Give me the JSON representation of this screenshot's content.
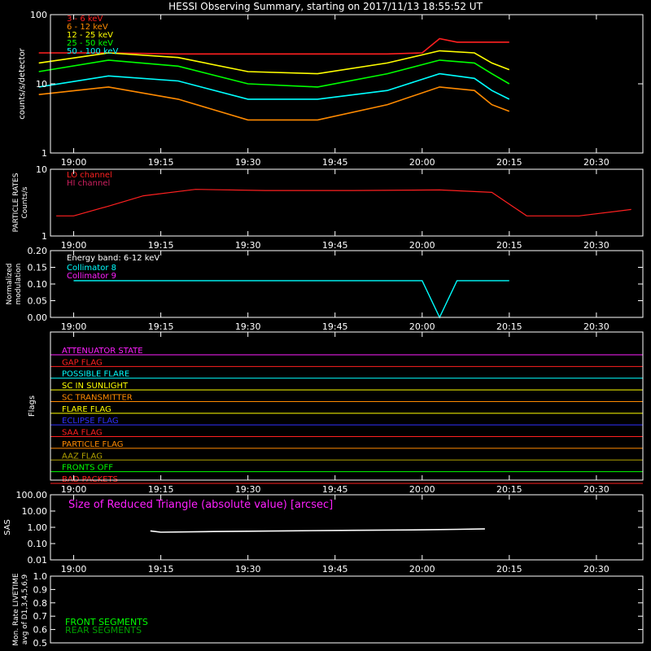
{
  "page_title": "HESSI Observing Summary, starting on 2017/11/13 18:55:52 UT",
  "chart_data": [
    {
      "type": "line",
      "panel": "count-rates",
      "ylabel": "counts/s/detector",
      "yscale": "log",
      "ylim": [
        1,
        100
      ],
      "y_ticks": [
        "1",
        "10",
        "100"
      ],
      "x_ticks": [
        "19:00",
        "19:15",
        "19:30",
        "19:45",
        "20:00",
        "20:15",
        "20:30"
      ],
      "series": [
        {
          "name": "3 - 6 keV",
          "color": "#ff2020",
          "x": [
            18.9,
            19.1,
            19.3,
            19.5,
            19.7,
            19.9,
            20.0,
            20.05,
            20.1,
            20.2,
            20.25
          ],
          "y": [
            28,
            28,
            27,
            27,
            27,
            27,
            28,
            45,
            40,
            40,
            40
          ]
        },
        {
          "name": "6 - 12 keV",
          "color": "#ff8a00",
          "x": [
            18.9,
            19.1,
            19.3,
            19.5,
            19.7,
            19.9,
            20.05,
            20.15,
            20.2,
            20.25
          ],
          "y": [
            7,
            9,
            6,
            3,
            3,
            5,
            9,
            8,
            5,
            4
          ]
        },
        {
          "name": "12 - 25 keV",
          "color": "#ffff00",
          "x": [
            18.9,
            19.1,
            19.3,
            19.5,
            19.7,
            19.9,
            20.05,
            20.15,
            20.2,
            20.25
          ],
          "y": [
            20,
            28,
            24,
            15,
            14,
            20,
            30,
            28,
            20,
            16
          ]
        },
        {
          "name": "25 - 50 keV",
          "color": "#00ff00",
          "x": [
            18.9,
            19.1,
            19.3,
            19.5,
            19.7,
            19.9,
            20.05,
            20.15,
            20.2,
            20.25
          ],
          "y": [
            15,
            22,
            18,
            10,
            9,
            14,
            22,
            20,
            14,
            10
          ]
        },
        {
          "name": "50 - 100 keV",
          "color": "#00ffff",
          "x": [
            18.9,
            19.1,
            19.3,
            19.5,
            19.7,
            19.9,
            20.05,
            20.15,
            20.2,
            20.25
          ],
          "y": [
            9,
            13,
            11,
            6,
            6,
            8,
            14,
            12,
            8,
            6
          ]
        }
      ]
    },
    {
      "type": "line",
      "panel": "particle-rates",
      "ylabel": "PARTICLE RATES",
      "ylabel2": "Counts/s",
      "yscale": "log",
      "ylim": [
        1,
        10
      ],
      "y_ticks": [
        "1",
        "10"
      ],
      "x_ticks": [
        "19:00",
        "19:15",
        "19:30",
        "19:45",
        "20:00",
        "20:15",
        "20:30"
      ],
      "series": [
        {
          "name": "LO channel",
          "color": "#ff2020",
          "x": [
            18.95,
            19.0,
            19.1,
            19.2,
            19.35,
            19.55,
            19.8,
            20.05,
            20.2,
            20.3,
            20.45,
            20.6
          ],
          "y": [
            2.0,
            2.0,
            2.8,
            4.0,
            5.0,
            4.8,
            4.8,
            4.9,
            4.5,
            2.0,
            2.0,
            2.5
          ]
        },
        {
          "name": "HI channel",
          "color": "#d02060",
          "x": [],
          "y": []
        }
      ]
    },
    {
      "type": "line",
      "panel": "modulation",
      "ylabel": "Normalized",
      "ylabel2": "modulation",
      "ylim": [
        0,
        0.2
      ],
      "y_ticks": [
        "0.00",
        "0.05",
        "0.10",
        "0.15",
        "0.20"
      ],
      "x_ticks": [
        "19:00",
        "19:15",
        "19:30",
        "19:45",
        "20:00",
        "20:15",
        "20:30"
      ],
      "annotation": "Energy band: 6-12 keV",
      "series": [
        {
          "name": "Collimator 8",
          "color": "#00ffff",
          "x": [
            19.0,
            19.1,
            19.3,
            19.5,
            19.7,
            19.9,
            20.0,
            20.05,
            20.1,
            20.2,
            20.25
          ],
          "y": [
            0.11,
            0.11,
            0.11,
            0.11,
            0.11,
            0.11,
            0.11,
            0.0,
            0.11,
            0.11,
            0.11
          ]
        },
        {
          "name": "Collimator 9",
          "color": "#ff20ff",
          "x": [],
          "y": []
        }
      ]
    },
    {
      "type": "line",
      "panel": "flags",
      "ylabel": "Flags",
      "x_ticks": [
        "19:00",
        "19:15",
        "19:30",
        "19:45",
        "20:00",
        "20:15",
        "20:30"
      ],
      "series": [
        {
          "name": "ATTENUATOR STATE",
          "color": "#ff20ff"
        },
        {
          "name": "GAP FLAG",
          "color": "#ff2020"
        },
        {
          "name": "POSSIBLE FLARE",
          "color": "#00ffff"
        },
        {
          "name": "SC IN SUNLIGHT",
          "color": "#ffff00"
        },
        {
          "name": "SC TRANSMITTER",
          "color": "#ff8a00"
        },
        {
          "name": "FLARE FLAG",
          "color": "#ffff00"
        },
        {
          "name": "ECLIPSE FLAG",
          "color": "#3030ff"
        },
        {
          "name": "SAA FLAG",
          "color": "#ff2020"
        },
        {
          "name": "PARTICLE FLAG",
          "color": "#ff8a00"
        },
        {
          "name": "AAZ FLAG",
          "color": "#b0a000"
        },
        {
          "name": "FRONTS OFF",
          "color": "#00ff00"
        },
        {
          "name": "BAD PACKETS",
          "color": "#ff2020"
        }
      ]
    },
    {
      "type": "line",
      "panel": "sas",
      "ylabel": "SAS",
      "yscale": "log",
      "ylim": [
        0.01,
        100
      ],
      "y_ticks": [
        "0.01",
        "0.10",
        "1.00",
        "10.00",
        "100.00"
      ],
      "x_ticks": [
        "19:00",
        "19:15",
        "19:30",
        "19:45",
        "20:00",
        "20:15",
        "20:30"
      ],
      "annotation": "Size of Reduced Triangle (absolute value) [arcsec]",
      "series": [
        {
          "color": "#ffffff",
          "x": [
            19.22,
            19.25,
            19.4,
            19.6,
            19.8,
            20.0,
            20.1,
            20.18
          ],
          "y": [
            0.6,
            0.5,
            0.55,
            0.6,
            0.65,
            0.7,
            0.75,
            0.8
          ]
        }
      ]
    },
    {
      "type": "line",
      "panel": "livetime",
      "ylabel": "Mon. Rate LIVETIME",
      "ylabel2": "avg of D1,3,4,5,6,9",
      "ylim": [
        0.5,
        1.0
      ],
      "y_ticks": [
        "0.5",
        "0.6",
        "0.7",
        "0.8",
        "0.9",
        "1.0"
      ],
      "series": [
        {
          "name": "FRONT SEGMENTS",
          "color": "#00ff00"
        },
        {
          "name": "REAR SEGMENTS",
          "color": "#00a000"
        }
      ]
    }
  ]
}
